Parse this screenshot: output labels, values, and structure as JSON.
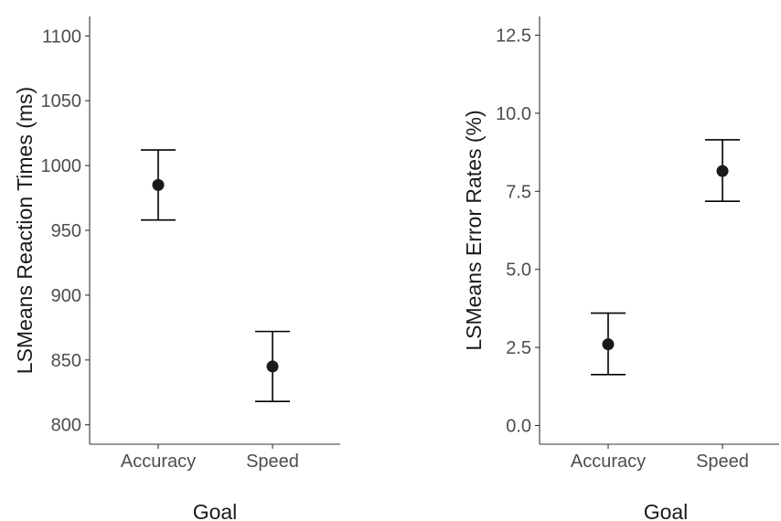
{
  "chart_data": [
    {
      "type": "scatter",
      "subtype": "point-with-error-bars",
      "xlabel": "Goal",
      "ylabel": "LSMeans Reaction Times (ms)",
      "categories": [
        "Accuracy",
        "Speed"
      ],
      "values": [
        985,
        845
      ],
      "error_lower": [
        958,
        818
      ],
      "error_upper": [
        1012,
        872
      ],
      "ylim": [
        785,
        1115
      ],
      "yticks": [
        800,
        850,
        900,
        950,
        1000,
        1050,
        1100
      ],
      "ytick_labels": [
        "800",
        "850",
        "900",
        "950",
        "1000",
        "1050",
        "1100"
      ],
      "grid": false,
      "legend": "none"
    },
    {
      "type": "scatter",
      "subtype": "point-with-error-bars",
      "xlabel": "Goal",
      "ylabel": "LSMeans Error Rates (%)",
      "categories": [
        "Accuracy",
        "Speed"
      ],
      "values": [
        2.6,
        8.15
      ],
      "error_lower": [
        1.63,
        7.18
      ],
      "error_upper": [
        3.6,
        9.15
      ],
      "ylim": [
        -0.6,
        13.1
      ],
      "yticks": [
        0,
        2.5,
        5,
        7.5,
        10,
        12.5
      ],
      "ytick_labels": [
        "0.0",
        "2.5",
        "5.0",
        "7.5",
        "10.0",
        "12.5"
      ],
      "grid": false,
      "legend": "none"
    }
  ]
}
